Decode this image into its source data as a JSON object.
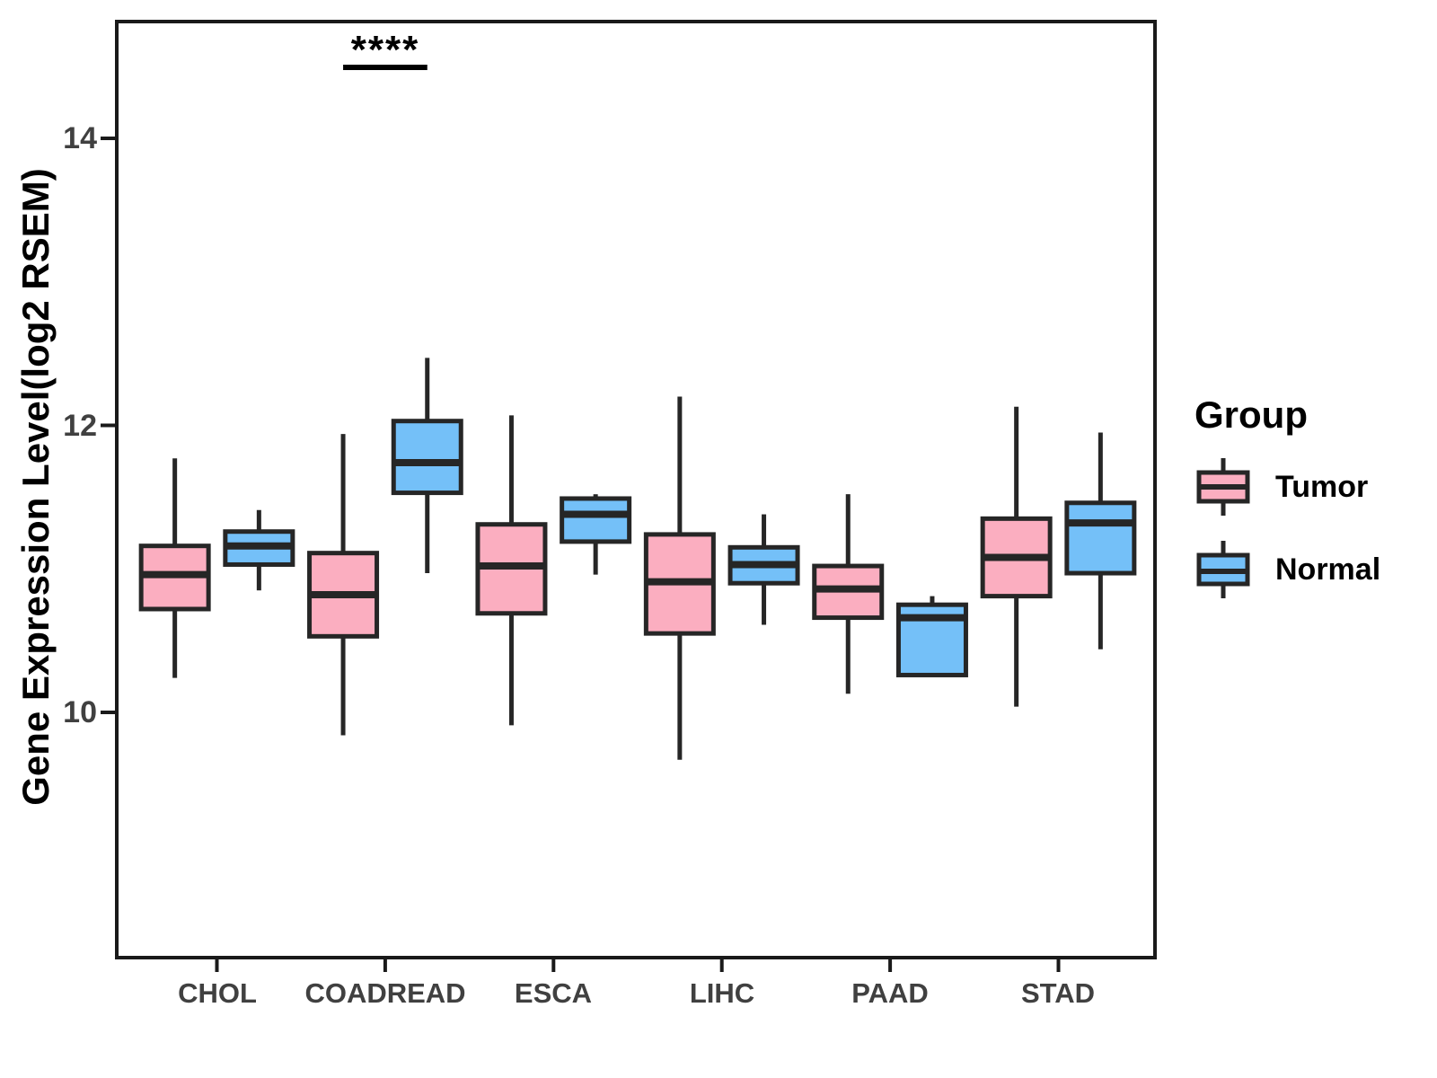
{
  "chart_data": {
    "type": "boxplot",
    "title": "",
    "ylabel": "Gene Expression Level(log2 RSEM)",
    "xlabel": "",
    "categories": [
      "CHOL",
      "COADREAD",
      "ESCA",
      "LIHC",
      "PAAD",
      "STAD"
    ],
    "yticks": [
      14,
      12,
      10
    ],
    "ytick_labels": [
      "14",
      "12",
      "10"
    ],
    "ylim": [
      8.3,
      14.85
    ],
    "grid": false,
    "box_border": "#262626",
    "series": [
      {
        "name": "Tumor",
        "color": "#FBAEC0",
        "stats": [
          {
            "whislo": 10.24,
            "q1": 10.72,
            "med": 10.96,
            "q3": 11.16,
            "whishi": 11.77
          },
          {
            "whislo": 9.84,
            "q1": 10.53,
            "med": 10.82,
            "q3": 11.11,
            "whishi": 11.94
          },
          {
            "whislo": 9.91,
            "q1": 10.69,
            "med": 11.02,
            "q3": 11.31,
            "whishi": 12.07
          },
          {
            "whislo": 9.67,
            "q1": 10.55,
            "med": 10.91,
            "q3": 11.24,
            "whishi": 12.2
          },
          {
            "whislo": 10.13,
            "q1": 10.66,
            "med": 10.86,
            "q3": 11.02,
            "whishi": 11.52
          },
          {
            "whislo": 10.04,
            "q1": 10.81,
            "med": 11.08,
            "q3": 11.35,
            "whishi": 12.13
          }
        ]
      },
      {
        "name": "Normal",
        "color": "#74C0F8",
        "stats": [
          {
            "whislo": 10.85,
            "q1": 11.03,
            "med": 11.16,
            "q3": 11.26,
            "whishi": 11.41
          },
          {
            "whislo": 10.97,
            "q1": 11.53,
            "med": 11.74,
            "q3": 12.03,
            "whishi": 12.47
          },
          {
            "whislo": 10.96,
            "q1": 11.19,
            "med": 11.38,
            "q3": 11.49,
            "whishi": 11.52
          },
          {
            "whislo": 10.61,
            "q1": 10.9,
            "med": 11.03,
            "q3": 11.15,
            "whishi": 11.38
          },
          {
            "whislo": 10.25,
            "q1": 10.26,
            "med": 10.66,
            "q3": 10.75,
            "whishi": 10.81
          },
          {
            "whislo": 10.44,
            "q1": 10.97,
            "med": 11.32,
            "q3": 11.46,
            "whishi": 11.95
          }
        ]
      }
    ],
    "legend": {
      "title": "Group",
      "position": "right"
    },
    "annotation": {
      "text": "****",
      "category": "COADREAD",
      "significance_bar": true
    }
  }
}
